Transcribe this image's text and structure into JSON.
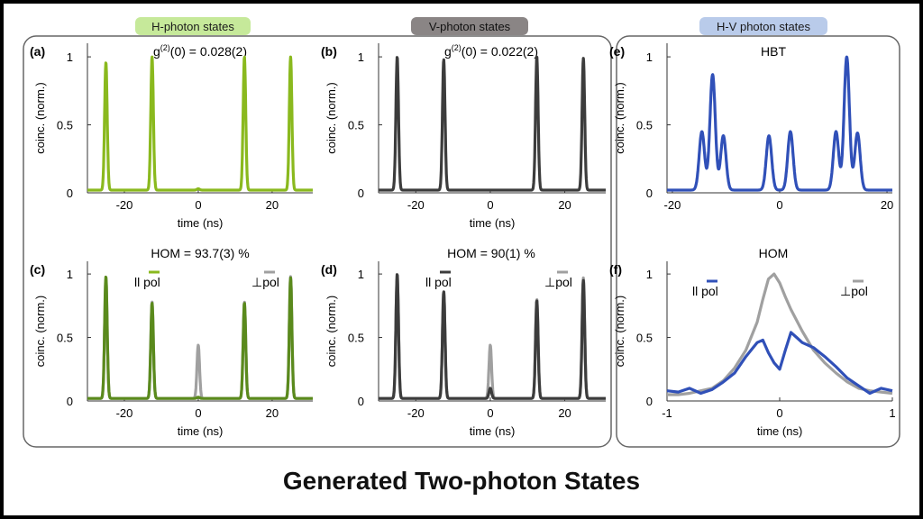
{
  "caption": "Generated Two-photon States",
  "colors": {
    "green": "#8ab91e",
    "dark_green": "#5a8a1c",
    "dark": "#3c3c3c",
    "gray": "#a0a0a0",
    "blue": "#3050b8",
    "header_green": "#c6e99a",
    "header_gray": "#8a8585",
    "header_blue": "#b9cbea"
  },
  "headers": {
    "h": "H-photon states",
    "v": "V-photon states",
    "hv": "H-V photon states"
  },
  "chart_data": [
    {
      "id": "a",
      "label": "(a)",
      "type": "line",
      "title": "g(2)(0) = 0.028(2)",
      "title_parts": {
        "pre": "g",
        "sup": "(2)",
        "post": "(0) = 0.028(2)"
      },
      "xlabel": "time (ns)",
      "ylabel": "coinc. (norm.)",
      "xlim": [
        -30,
        31
      ],
      "ylim": [
        0,
        1.1
      ],
      "xticks": [
        "-20",
        "0",
        "20"
      ],
      "yticks": [
        "0",
        "0.5",
        "1"
      ],
      "color": "green",
      "xtick_values": [
        -20,
        0,
        20
      ],
      "ytick_values": [
        0,
        0.5,
        1
      ],
      "series": [
        {
          "color": "green",
          "peaks": [
            {
              "x": -25,
              "y": 0.96
            },
            {
              "x": -12.5,
              "y": 1.0
            },
            {
              "x": 0,
              "y": 0.03
            },
            {
              "x": 12.5,
              "y": 1.0
            },
            {
              "x": 25,
              "y": 1.0
            }
          ],
          "width": 0.35,
          "baseline": 0.02
        }
      ]
    },
    {
      "id": "b",
      "label": "(b)",
      "type": "line",
      "title": "g(2)(0) = 0.022(2)",
      "title_parts": {
        "pre": "g",
        "sup": "(2)",
        "post": "(0) = 0.022(2)"
      },
      "xlabel": "time (ns)",
      "ylabel": "coinc. (norm.)",
      "xlim": [
        -30,
        31
      ],
      "ylim": [
        0,
        1.1
      ],
      "xticks": [
        "-20",
        "0",
        "20"
      ],
      "yticks": [
        "0",
        "0.5",
        "1"
      ],
      "xtick_values": [
        -20,
        0,
        20
      ],
      "ytick_values": [
        0,
        0.5,
        1
      ],
      "series": [
        {
          "color": "dark",
          "peaks": [
            {
              "x": -25,
              "y": 1.0
            },
            {
              "x": -12.5,
              "y": 0.98
            },
            {
              "x": 0,
              "y": 0.02
            },
            {
              "x": 12.5,
              "y": 1.0
            },
            {
              "x": 25,
              "y": 0.99
            }
          ],
          "width": 0.35,
          "baseline": 0.02
        }
      ]
    },
    {
      "id": "c",
      "label": "(c)",
      "type": "line",
      "title": "HOM  = 93.7(3) %",
      "xlabel": "time (ns)",
      "ylabel": "coinc. (norm.)",
      "xlim": [
        -30,
        31
      ],
      "ylim": [
        0,
        1.1
      ],
      "xticks": [
        "-20",
        "0",
        "20"
      ],
      "yticks": [
        "0",
        "0.5",
        "1"
      ],
      "xtick_values": [
        -20,
        0,
        20
      ],
      "ytick_values": [
        0,
        0.5,
        1
      ],
      "legend": {
        "left": "ll pol",
        "right": "⊥pol",
        "left_color": "green",
        "right_color": "gray"
      },
      "series": [
        {
          "name": "⊥pol",
          "color": "gray",
          "peaks": [
            {
              "x": -25,
              "y": 0.96
            },
            {
              "x": -12.5,
              "y": 0.78
            },
            {
              "x": 0,
              "y": 0.44
            },
            {
              "x": 12.5,
              "y": 0.78
            },
            {
              "x": 25,
              "y": 0.98
            }
          ],
          "width": 0.35,
          "baseline": 0.02
        },
        {
          "name": "ll pol",
          "color": "dark_green",
          "peaks": [
            {
              "x": -25,
              "y": 0.98
            },
            {
              "x": -12.5,
              "y": 0.77
            },
            {
              "x": 0,
              "y": 0.03
            },
            {
              "x": 12.5,
              "y": 0.77
            },
            {
              "x": 25,
              "y": 0.97
            }
          ],
          "width": 0.35,
          "baseline": 0.02
        }
      ]
    },
    {
      "id": "d",
      "label": "(d)",
      "type": "line",
      "title": "HOM  = 90(1) %",
      "xlabel": "time (ns)",
      "ylabel": "coinc. (norm.)",
      "xlim": [
        -30,
        31
      ],
      "ylim": [
        0,
        1.1
      ],
      "xticks": [
        "-20",
        "0",
        "20"
      ],
      "yticks": [
        "0",
        "0.5",
        "1"
      ],
      "xtick_values": [
        -20,
        0,
        20
      ],
      "ytick_values": [
        0,
        0.5,
        1
      ],
      "legend": {
        "left": "ll pol",
        "right": "⊥pol",
        "left_color": "dark",
        "right_color": "gray"
      },
      "series": [
        {
          "name": "⊥pol",
          "color": "gray",
          "peaks": [
            {
              "x": -25,
              "y": 0.99
            },
            {
              "x": -12.5,
              "y": 0.86
            },
            {
              "x": 0,
              "y": 0.44
            },
            {
              "x": 12.5,
              "y": 0.8
            },
            {
              "x": 25,
              "y": 0.97
            }
          ],
          "width": 0.35,
          "baseline": 0.02
        },
        {
          "name": "ll pol",
          "color": "dark",
          "peaks": [
            {
              "x": -25,
              "y": 1.0
            },
            {
              "x": -12.5,
              "y": 0.86
            },
            {
              "x": 0,
              "y": 0.1
            },
            {
              "x": 12.5,
              "y": 0.79
            },
            {
              "x": 25,
              "y": 0.95
            }
          ],
          "width": 0.35,
          "baseline": 0.02
        }
      ]
    },
    {
      "id": "e",
      "label": "(e)",
      "type": "line",
      "title": "HBT",
      "xlabel": "",
      "ylabel": "coinc. (norm.)",
      "xlim": [
        -21,
        21
      ],
      "ylim": [
        0,
        1.1
      ],
      "xticks": [
        "-20",
        "0",
        "20"
      ],
      "yticks": [
        "0",
        "0.5",
        "1"
      ],
      "xtick_values": [
        -20,
        0,
        20
      ],
      "ytick_values": [
        0,
        0.5,
        1
      ],
      "series": [
        {
          "color": "blue",
          "peaks": [
            {
              "x": -14.5,
              "y": 0.45
            },
            {
              "x": -12.5,
              "y": 0.87
            },
            {
              "x": -10.5,
              "y": 0.42
            },
            {
              "x": -2,
              "y": 0.42
            },
            {
              "x": 2,
              "y": 0.45
            },
            {
              "x": 10.5,
              "y": 0.45
            },
            {
              "x": 12.5,
              "y": 1.0
            },
            {
              "x": 14.5,
              "y": 0.44
            }
          ],
          "width": 0.5,
          "baseline": 0.02
        }
      ]
    },
    {
      "id": "f",
      "label": "(f)",
      "type": "line",
      "title": "HOM",
      "xlabel": "time (ns)",
      "ylabel": "coinc. (norm.)",
      "xlim": [
        -1,
        1
      ],
      "ylim": [
        0,
        1.1
      ],
      "xticks": [
        "-1",
        "0",
        "1"
      ],
      "yticks": [
        "0",
        "0.5",
        "1"
      ],
      "xtick_values": [
        -1,
        0,
        1
      ],
      "ytick_values": [
        0,
        0.5,
        1
      ],
      "legend": {
        "left": "ll pol",
        "right": "⊥pol",
        "left_color": "blue",
        "right_color": "gray"
      },
      "series": [
        {
          "name": "⊥pol",
          "color": "gray",
          "x": [
            -1,
            -0.9,
            -0.8,
            -0.7,
            -0.6,
            -0.5,
            -0.4,
            -0.3,
            -0.2,
            -0.15,
            -0.1,
            -0.05,
            0,
            0.05,
            0.1,
            0.2,
            0.3,
            0.4,
            0.5,
            0.6,
            0.7,
            0.8,
            0.9,
            1
          ],
          "y": [
            0.05,
            0.05,
            0.06,
            0.08,
            0.1,
            0.16,
            0.26,
            0.4,
            0.62,
            0.8,
            0.96,
            1.0,
            0.93,
            0.82,
            0.72,
            0.55,
            0.4,
            0.3,
            0.22,
            0.15,
            0.1,
            0.08,
            0.07,
            0.06
          ]
        },
        {
          "name": "ll pol",
          "color": "blue",
          "x": [
            -1,
            -0.9,
            -0.8,
            -0.7,
            -0.6,
            -0.5,
            -0.4,
            -0.3,
            -0.2,
            -0.15,
            -0.1,
            -0.05,
            0,
            0.05,
            0.1,
            0.15,
            0.2,
            0.3,
            0.4,
            0.5,
            0.6,
            0.7,
            0.8,
            0.9,
            1
          ],
          "y": [
            0.08,
            0.07,
            0.1,
            0.06,
            0.09,
            0.15,
            0.22,
            0.35,
            0.46,
            0.48,
            0.38,
            0.3,
            0.25,
            0.4,
            0.54,
            0.5,
            0.46,
            0.42,
            0.35,
            0.27,
            0.18,
            0.12,
            0.06,
            0.1,
            0.08
          ]
        }
      ]
    }
  ]
}
